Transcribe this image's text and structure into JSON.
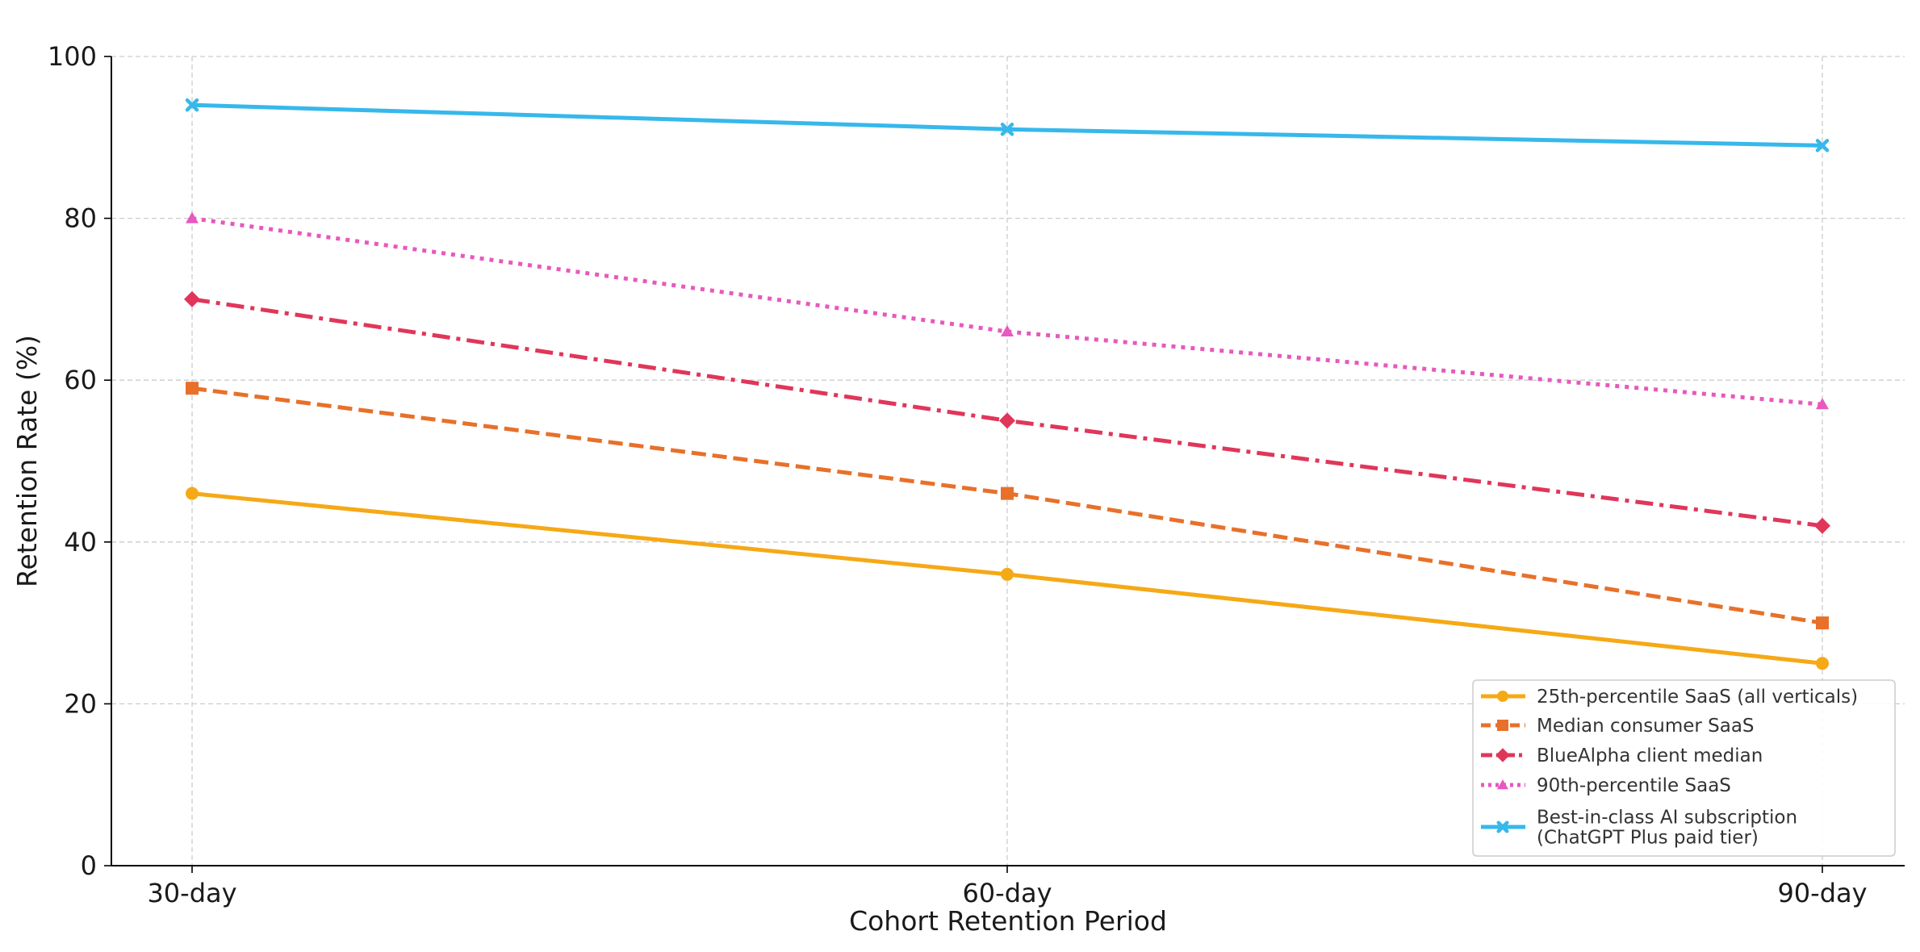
{
  "chart_data": {
    "type": "line",
    "title": "",
    "xlabel": "Cohort Retention Period",
    "ylabel": "Retention Rate (%)",
    "categories": [
      "30-day",
      "60-day",
      "90-day"
    ],
    "ylim": [
      0,
      100
    ],
    "yticks": [
      0,
      20,
      40,
      60,
      80,
      100
    ],
    "grid": true,
    "legend_position": "lower-right",
    "series": [
      {
        "name": "25th-percentile SaaS (all verticals)",
        "values": [
          46,
          36,
          25
        ],
        "color": "#F5A916",
        "dash": "solid",
        "marker": "circle"
      },
      {
        "name": "Median consumer SaaS",
        "values": [
          59,
          46,
          30
        ],
        "color": "#E8702A",
        "dash": "dashed",
        "marker": "square"
      },
      {
        "name": "BlueAlpha client median",
        "values": [
          70,
          55,
          42
        ],
        "color": "#E0365A",
        "dash": "dashdot",
        "marker": "diamond"
      },
      {
        "name": "90th-percentile SaaS",
        "values": [
          80,
          66,
          57
        ],
        "color": "#E858BE",
        "dash": "dotted",
        "marker": "triangle"
      },
      {
        "name": "Best-in-class AI subscription\n(ChatGPT Plus paid tier)",
        "values": [
          94,
          91,
          89
        ],
        "color": "#36B8EB",
        "dash": "solid",
        "marker": "x"
      }
    ]
  }
}
